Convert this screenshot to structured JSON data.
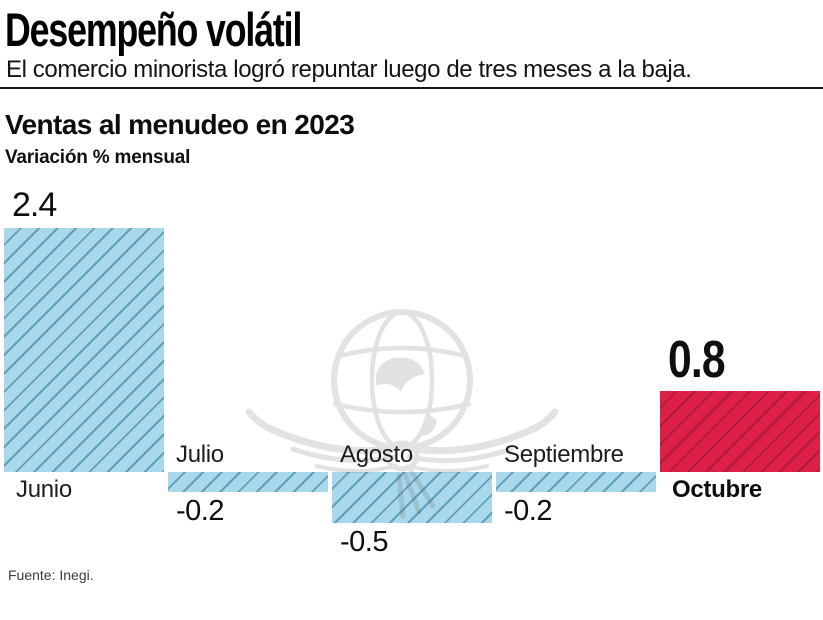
{
  "header": {
    "title": "Desempeño volátil",
    "subtitle": "El comercio minorista logró repuntar luego de tres meses a la baja."
  },
  "chart": {
    "heading": "Ventas al menudeo en 2023",
    "subheading": "Variación % mensual",
    "source": "Fuente: Inegi."
  },
  "watermark": {
    "icon": "eagle-globe-watermark"
  },
  "chart_data": {
    "type": "bar",
    "title": "Ventas al menudeo en 2023",
    "subtitle": "Variación % mensual",
    "unit": "variación % mensual",
    "categories": [
      "Junio",
      "Julio",
      "Agosto",
      "Septiembre",
      "Octubre"
    ],
    "values": [
      2.4,
      -0.2,
      -0.5,
      -0.2,
      0.8
    ],
    "value_labels": [
      "2.4",
      "-0.2",
      "-0.5",
      "-0.2",
      "0.8"
    ],
    "highlight_index": 4,
    "highlight_category": "Octubre",
    "baseline": 0,
    "ylim": [
      -0.5,
      2.4
    ],
    "grid": false,
    "legend": false,
    "axis_line": false,
    "colors": {
      "bar_fill": "#a9d8ea",
      "bar_hatch": "#5f9fbd",
      "highlight_fill": "#dd2048",
      "highlight_hatch": "#b21a3c",
      "text": "#111111",
      "watermark": "#e5e5e5"
    },
    "source": "Fuente: Inegi."
  }
}
